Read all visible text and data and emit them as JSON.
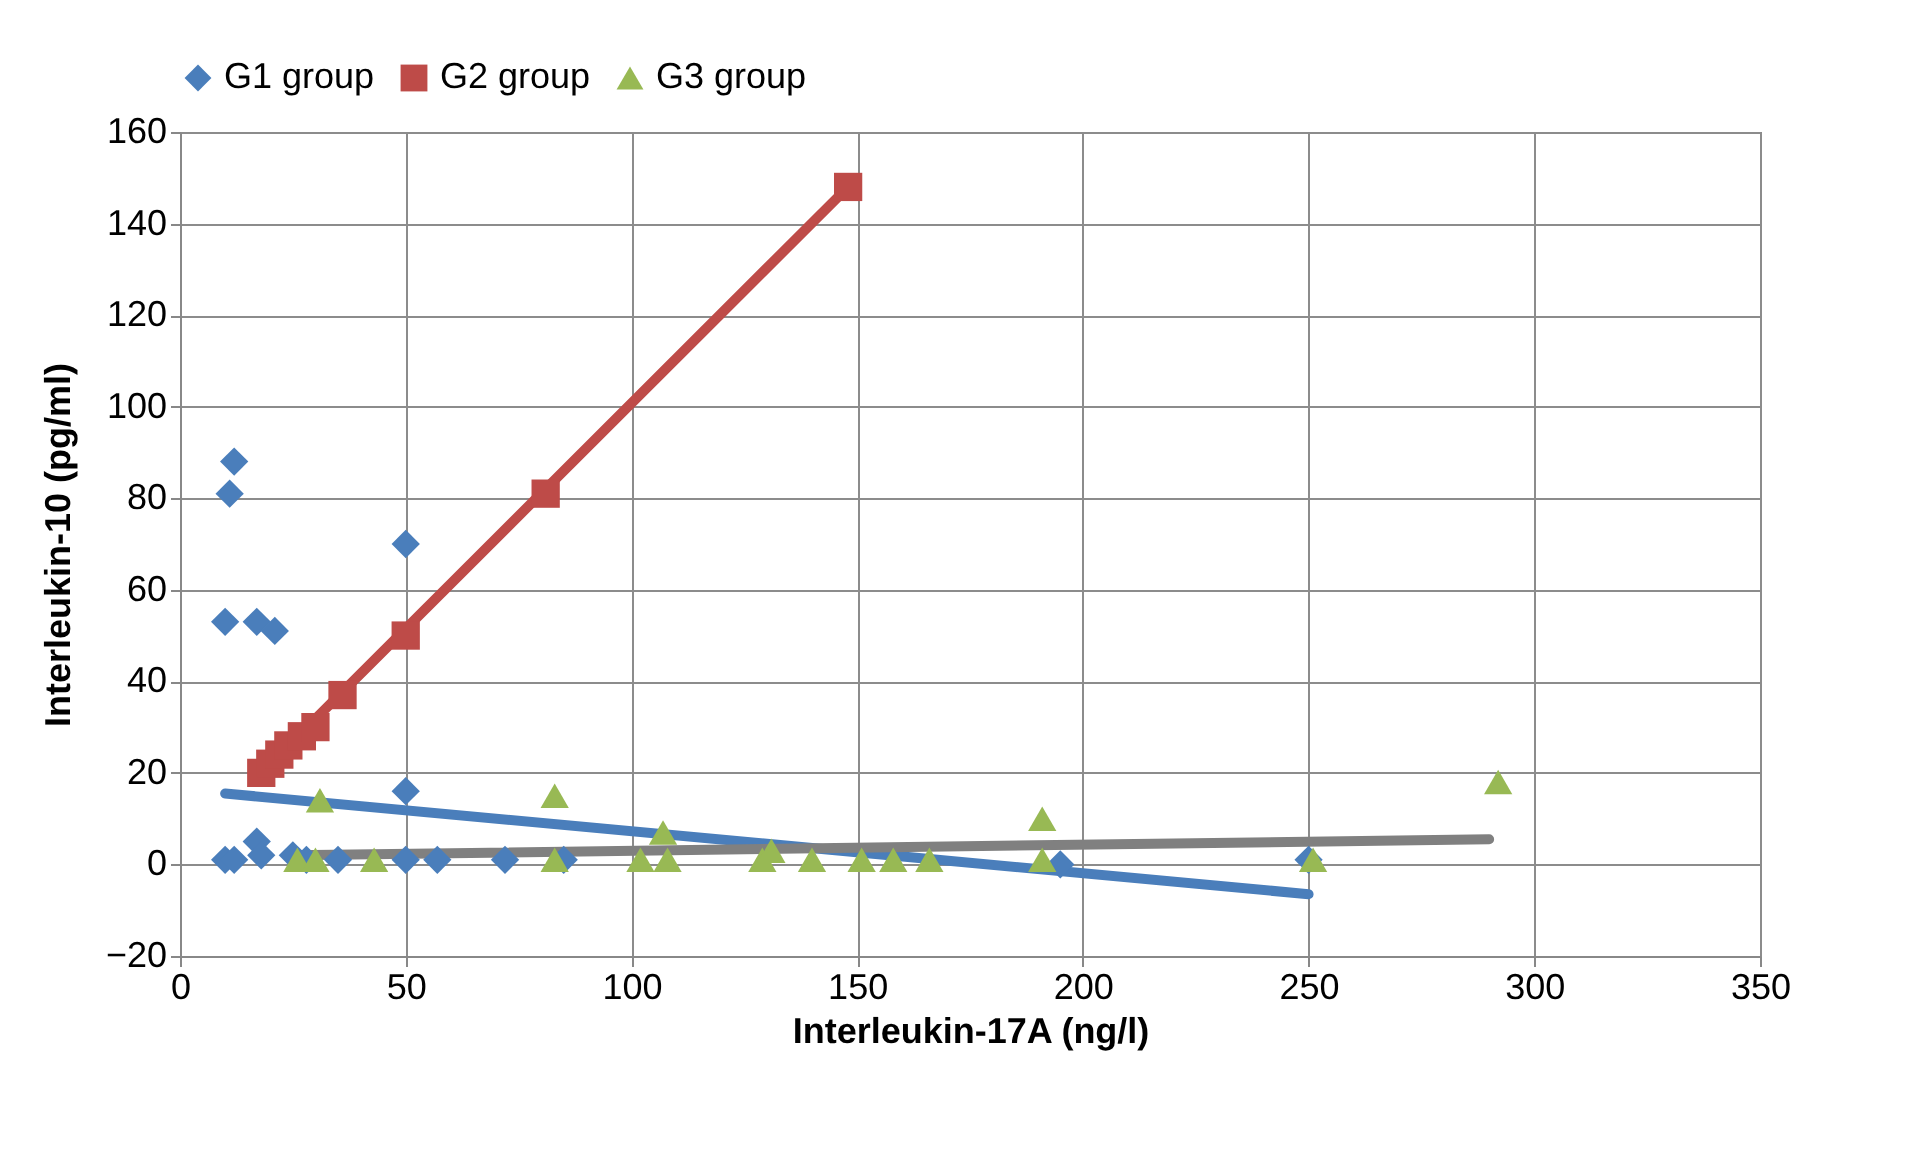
{
  "chart_data": {
    "type": "scatter",
    "xlabel": "Interleukin-17A (ng/l)",
    "ylabel": "Interleukin-10 (pg/ml)",
    "xlim": [
      0,
      350
    ],
    "xticks": [
      0,
      50,
      100,
      150,
      200,
      250,
      300,
      350
    ],
    "ylim": [
      -20,
      160
    ],
    "yticks": [
      -20,
      0,
      20,
      40,
      60,
      80,
      100,
      120,
      140,
      160
    ],
    "grid": true,
    "legend": "top",
    "series": [
      {
        "name": "G1 group",
        "marker": "diamond",
        "color": "#4a7ebb",
        "x": [
          10,
          11,
          12,
          17,
          21,
          50,
          50,
          10,
          12,
          17,
          18,
          25,
          28,
          35,
          50,
          57,
          72,
          85,
          195,
          250
        ],
        "values": [
          53,
          81,
          88,
          53,
          51,
          70,
          16,
          1,
          1,
          5,
          2,
          2,
          1,
          1,
          1,
          1,
          1,
          1,
          0,
          1
        ]
      },
      {
        "name": "G2 group",
        "marker": "square",
        "color": "#be4b48",
        "x": [
          18,
          20,
          22,
          24,
          27,
          30,
          36,
          50,
          81,
          148
        ],
        "values": [
          20,
          22,
          24,
          26,
          28,
          30,
          37,
          50,
          81,
          148
        ]
      },
      {
        "name": "G3 group",
        "marker": "triangle",
        "color": "#98b954",
        "x": [
          26,
          30,
          31,
          43,
          83,
          83,
          102,
          107,
          108,
          129,
          131,
          140,
          151,
          158,
          166,
          191,
          191,
          251,
          292
        ],
        "values": [
          1,
          1,
          14,
          1,
          15,
          1,
          1,
          7,
          1,
          1,
          3,
          1,
          1,
          1,
          1,
          10,
          1,
          1,
          18
        ]
      },
      {
        "type": "line",
        "marker": "none",
        "color": "#4a7ebb",
        "x": [
          10,
          250
        ],
        "values": [
          15.5,
          -6.5
        ]
      },
      {
        "type": "line",
        "marker": "none",
        "color": "#be4b48",
        "x": [
          17,
          148
        ],
        "values": [
          19,
          148
        ]
      },
      {
        "type": "line",
        "marker": "none",
        "color": "#808080",
        "x": [
          25,
          290
        ],
        "values": [
          2,
          5.5
        ]
      }
    ]
  }
}
